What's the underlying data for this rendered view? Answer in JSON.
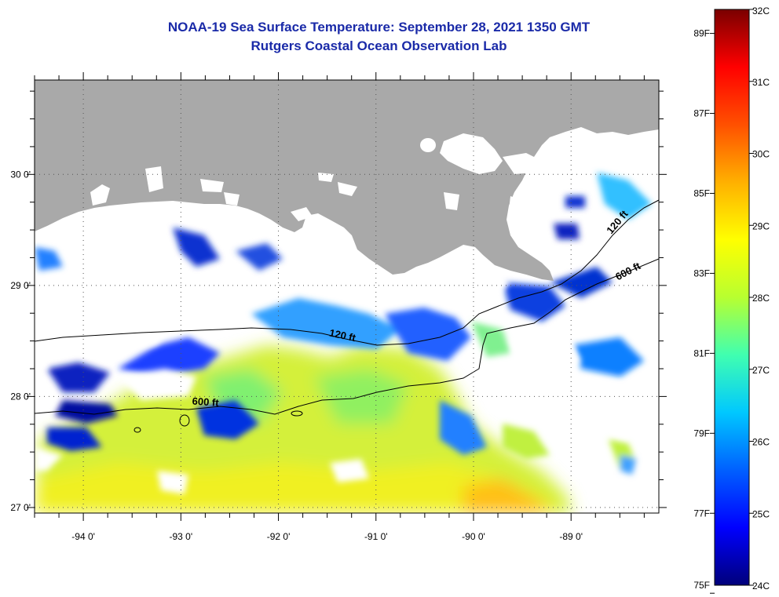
{
  "title": "NOAA-19 Sea Surface Temperature:  September 28, 2021 1350 GMT",
  "subtitle": "Rutgers Coastal Ocean Observation Lab",
  "map": {
    "lon_range": [
      -94.5,
      -88.1
    ],
    "lat_range": [
      26.95,
      30.85
    ],
    "lon_ticks": [
      {
        "value": -94,
        "label": "-94 0'"
      },
      {
        "value": -93,
        "label": "-93 0'"
      },
      {
        "value": -92,
        "label": "-92 0'"
      },
      {
        "value": -91,
        "label": "-91 0'"
      },
      {
        "value": -90,
        "label": "-90 0'"
      },
      {
        "value": -89,
        "label": "-89 0'"
      }
    ],
    "lat_ticks": [
      {
        "value": 27,
        "label": "27 0'"
      },
      {
        "value": 28,
        "label": "28 0'"
      },
      {
        "value": 29,
        "label": "29 0'"
      },
      {
        "value": 30,
        "label": "30 0'"
      }
    ],
    "contour_labels": [
      {
        "text": "120 ft",
        "lon": -91.35,
        "lat": 28.52
      },
      {
        "text": "600 ft",
        "lon": -92.75,
        "lat": 27.92
      },
      {
        "text": "120 ft",
        "lon": -88.5,
        "lat": 29.55
      },
      {
        "text": "600 ft",
        "lon": -88.4,
        "lat": 29.1
      }
    ],
    "land_color": "#a9a9a9",
    "cloud_color": "#ffffff"
  },
  "colorbar": {
    "min_c": 24,
    "max_c": 32,
    "celsius_labels": [
      "32C",
      "31C",
      "30C",
      "29C",
      "28C",
      "27C",
      "26C",
      "25C",
      "24C"
    ],
    "fahrenheit_labels": [
      "89F",
      "87F",
      "85F",
      "83F",
      "81F",
      "79F",
      "77F",
      "75F"
    ],
    "colors": [
      "#00007a",
      "#0000ff",
      "#0060ff",
      "#00c8ff",
      "#40ffb0",
      "#b8ff30",
      "#ffff00",
      "#ffb000",
      "#ff5000",
      "#ff0000",
      "#7a0000"
    ]
  }
}
